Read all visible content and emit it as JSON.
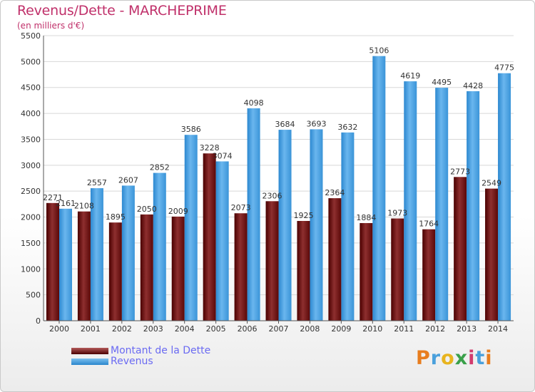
{
  "title": "Revenus/Dette - MARCHEPRIME",
  "subtitle": "(en milliers d'€)",
  "logo": {
    "letters": [
      "P",
      "r",
      "o",
      "x",
      "i",
      "t",
      "i"
    ],
    "colors": [
      "#e87d1e",
      "#4aa0dc",
      "#e8b41e",
      "#3aa04a",
      "#d23b6e",
      "#4aa0dc",
      "#e87d1e"
    ]
  },
  "chart_data": {
    "type": "bar",
    "categories": [
      "2000",
      "2001",
      "2002",
      "2003",
      "2004",
      "2005",
      "2006",
      "2007",
      "2008",
      "2009",
      "2010",
      "2011",
      "2012",
      "2013",
      "2014"
    ],
    "series": [
      {
        "name": "Montant de la Dette",
        "color": "#7a1c1c",
        "values": [
          2271,
          2108,
          1895,
          2050,
          2009,
          3228,
          2073,
          2306,
          1925,
          2364,
          1884,
          1973,
          1764,
          2773,
          2549
        ],
        "labels": [
          "2271",
          "2108",
          "1895",
          "2050",
          "2009",
          "3228",
          "2073",
          "2306",
          "1925",
          "2364",
          "1884",
          "1973",
          "1764",
          "2773",
          "2549"
        ]
      },
      {
        "name": "Revenus",
        "color": "#4aa0e6",
        "values": [
          2161,
          2557,
          2607,
          2852,
          3586,
          3074,
          4098,
          3684,
          3693,
          3632,
          5106,
          4619,
          4495,
          4428,
          4775
        ],
        "labels": [
          "2161",
          "2557",
          "2607",
          "2852",
          "3586",
          "3074",
          "4098",
          "3684",
          "3693",
          "3632",
          "5106",
          "4619",
          "4495",
          "4428",
          "4775"
        ]
      }
    ],
    "ylim": [
      0,
      5500
    ],
    "yticks": [
      "0",
      "500",
      "1000",
      "1500",
      "2000",
      "2500",
      "3000",
      "3500",
      "4000",
      "4500",
      "5000",
      "5500"
    ],
    "grid": true,
    "legend_position": "bottom-left"
  }
}
